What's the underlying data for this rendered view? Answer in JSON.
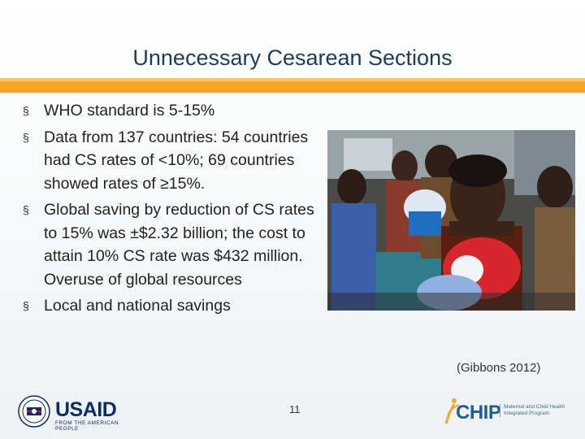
{
  "slide": {
    "title": "Unnecessary Cesarean Sections",
    "bullets": [
      "WHO standard is 5-15%",
      "Data from 137 countries: 54 countries had CS rates of <10%; 69 countries showed rates of ≥15%.",
      "Global saving by reduction of CS rates to 15% was  ±$2.32 billion; the cost to attain 10% CS rate was $432 million.  Overuse of global resources",
      "Local and national savings"
    ],
    "bullet_marker": "§",
    "citation": "(Gibbons 2012)",
    "page_number": "11"
  },
  "footer": {
    "usaid_brand": "USAID",
    "usaid_tagline": "FROM THE AMERICAN PEOPLE",
    "chip_brand": "CHIP",
    "chip_description": "Maternal and Child Health Integrated Program"
  },
  "colors": {
    "title": "#1d3c5a",
    "accent_bar": "#f5a623",
    "usaid_blue": "#0b2e6b",
    "usaid_red": "#c8102e",
    "chip_blue": "#1f5f8b"
  }
}
